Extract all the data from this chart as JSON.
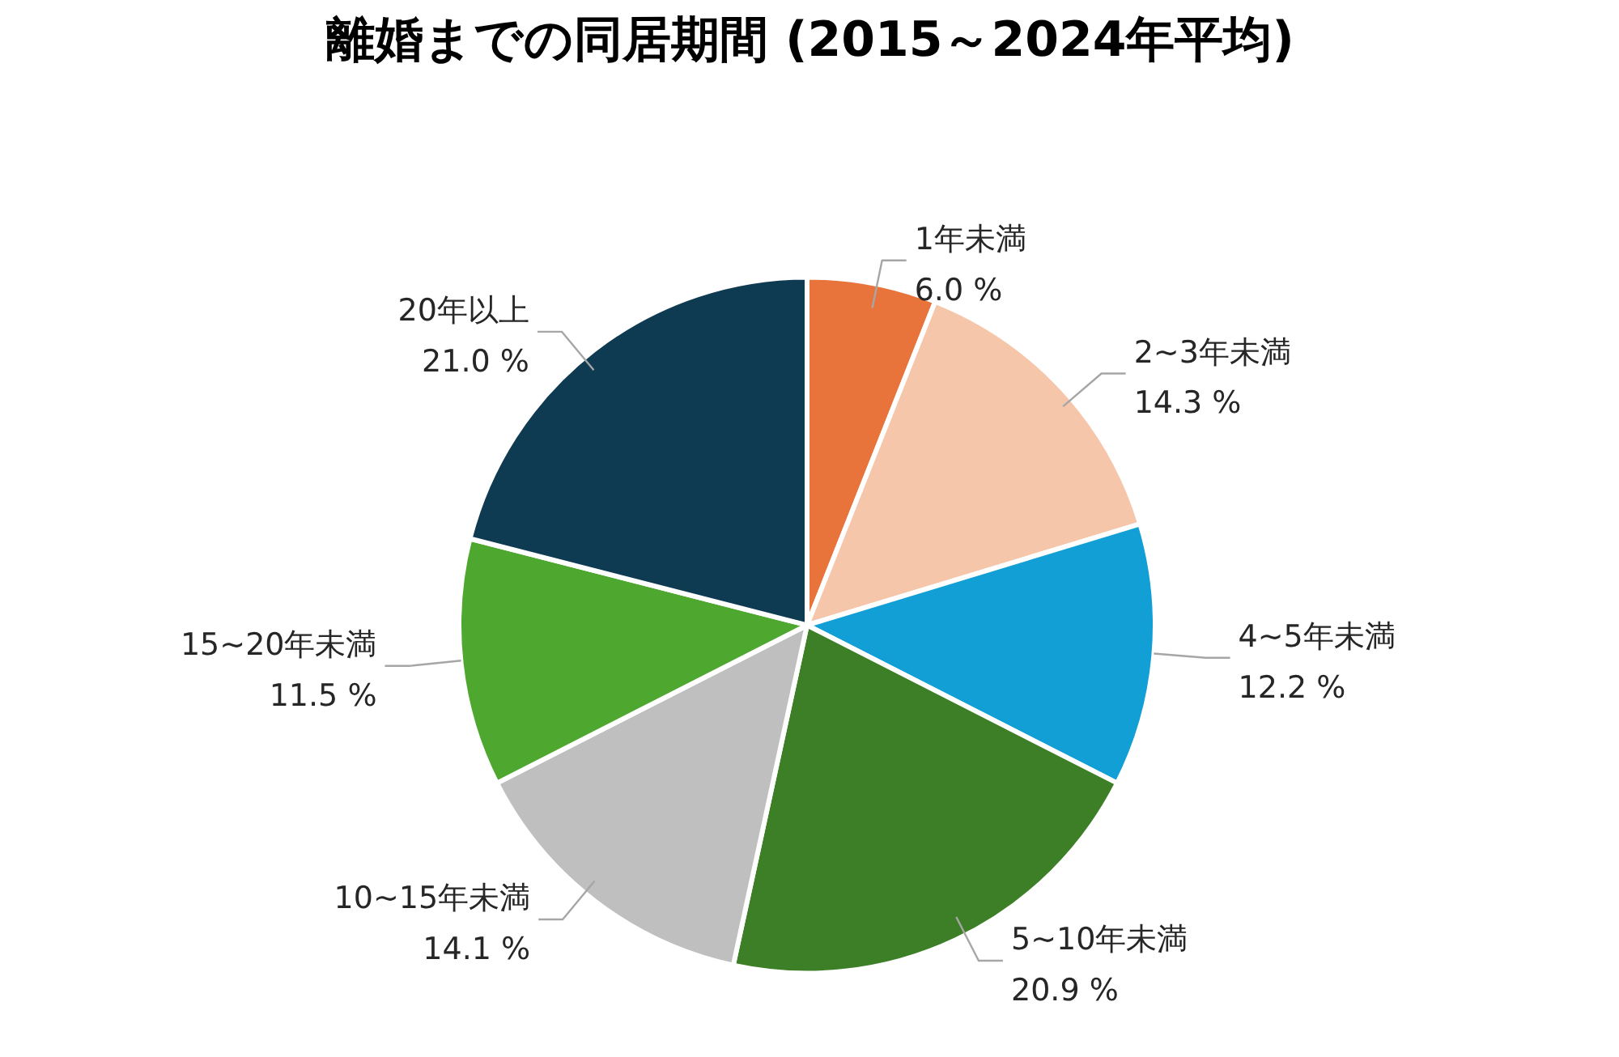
{
  "chart_data": {
    "type": "pie",
    "title": "離婚までの同居期間 (2015～2024年平均)",
    "categories": [
      "1年未満",
      "2~3年未満",
      "4~5年未満",
      "5~10年未満",
      "10~15年未満",
      "15~20年未満",
      "20年以上"
    ],
    "values": [
      6.0,
      14.3,
      12.2,
      20.9,
      14.1,
      11.5,
      21.0
    ],
    "value_labels": [
      "6.0 %",
      "14.3 %",
      "12.2 %",
      "20.9 %",
      "14.1 %",
      "11.5 %",
      "21.0 %"
    ],
    "colors": [
      "#e8743b",
      "#f5c6aa",
      "#129fd6",
      "#3d7f27",
      "#bfbfbf",
      "#4ea72e",
      "#0e3a52"
    ]
  }
}
